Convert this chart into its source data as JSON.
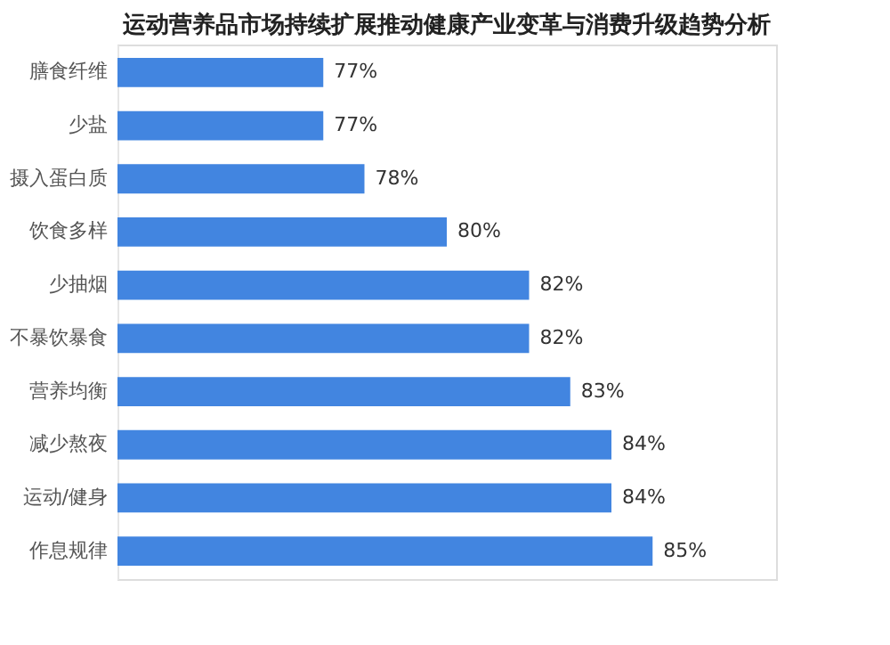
{
  "chart_data": {
    "type": "bar",
    "orientation": "horizontal",
    "title": "运动营养品市场持续扩展推动健康产业变革与消费升级趋势分析",
    "categories": [
      "膳食纤维",
      "少盐",
      "摄入蛋白质",
      "饮食多样",
      "少抽烟",
      "不暴饮暴食",
      "营养均衡",
      "减少熬夜",
      "运动/健身",
      "作息规律"
    ],
    "values": [
      77,
      77,
      78,
      80,
      82,
      82,
      83,
      84,
      84,
      85
    ],
    "value_labels": [
      "77%",
      "77%",
      "78%",
      "80%",
      "82%",
      "82%",
      "83%",
      "84%",
      "84%",
      "85%"
    ],
    "color": "#4285e0",
    "xlim": [
      72,
      88
    ],
    "tick_labels": "y"
  }
}
